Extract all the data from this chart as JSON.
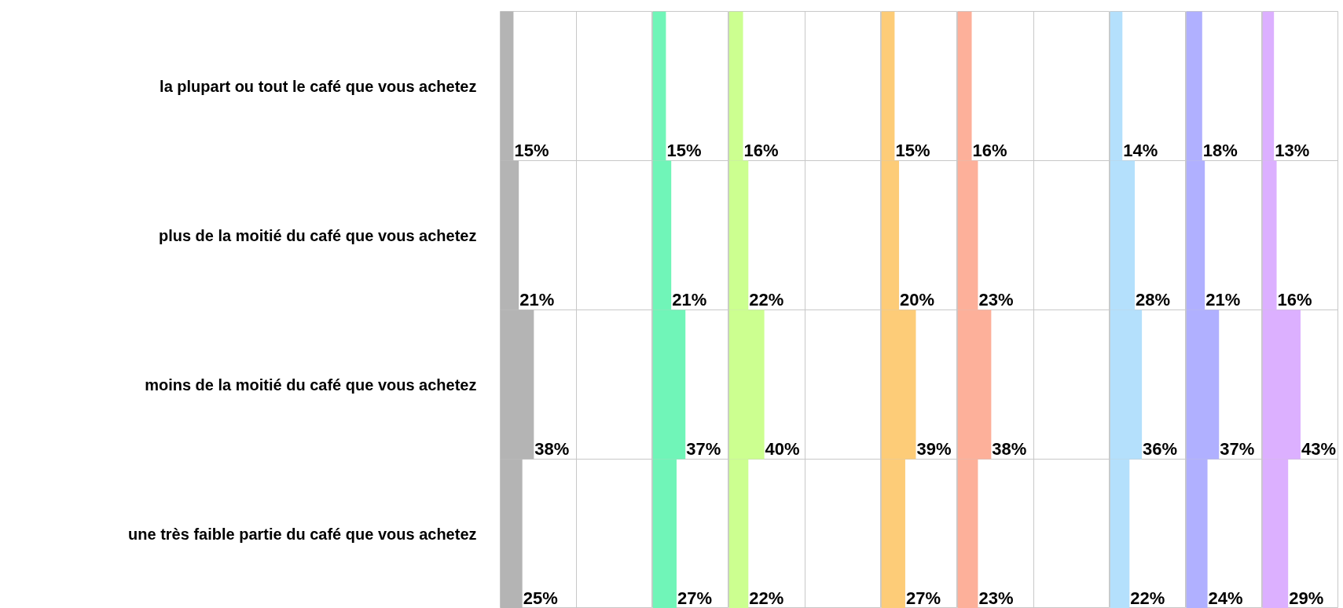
{
  "chart_data": [
    {
      "type": "bar",
      "orientation": "horizontal",
      "grid": true,
      "color": "#b4b4b4",
      "categories": [
        "la plupart ou tout le café que vous achetez",
        "plus de la moitié du café que vous achetez",
        "moins de la moitié du café que vous achetez",
        "une très faible partie du café que vous achetez"
      ],
      "values": [
        15,
        21,
        38,
        25
      ],
      "value_labels": [
        "15%",
        "21%",
        "38%",
        "25%"
      ]
    },
    {
      "type": "bar",
      "orientation": "horizontal",
      "grid": true,
      "color": "#70f5b8",
      "categories": [
        null,
        null,
        null,
        null
      ],
      "values": [
        15,
        21,
        37,
        27
      ],
      "value_labels": [
        "15%",
        "21%",
        "37%",
        "27%"
      ]
    },
    {
      "type": "bar",
      "orientation": "horizontal",
      "grid": true,
      "color": "#ccff90",
      "categories": [
        null,
        null,
        null,
        null
      ],
      "values": [
        16,
        22,
        40,
        22
      ],
      "value_labels": [
        "16%",
        "22%",
        "40%",
        "22%"
      ]
    },
    {
      "type": "bar",
      "orientation": "horizontal",
      "grid": true,
      "color": "#fdcc78",
      "categories": [
        null,
        null,
        null,
        null
      ],
      "values": [
        15,
        20,
        39,
        27
      ],
      "value_labels": [
        "15%",
        "20%",
        "39%",
        "27%"
      ]
    },
    {
      "type": "bar",
      "orientation": "horizontal",
      "grid": true,
      "color": "#fdb09a",
      "categories": [
        null,
        null,
        null,
        null
      ],
      "values": [
        16,
        23,
        38,
        23
      ],
      "value_labels": [
        "16%",
        "23%",
        "38%",
        "23%"
      ]
    },
    {
      "type": "bar",
      "orientation": "horizontal",
      "grid": true,
      "color": "#b4e0fc",
      "categories": [
        null,
        null,
        null,
        null
      ],
      "values": [
        14,
        28,
        36,
        22
      ],
      "value_labels": [
        "14%",
        "28%",
        "36%",
        "22%"
      ]
    },
    {
      "type": "bar",
      "orientation": "horizontal",
      "grid": true,
      "color": "#b0b0ff",
      "categories": [
        null,
        null,
        null,
        null
      ],
      "values": [
        18,
        21,
        37,
        24
      ],
      "value_labels": [
        "18%",
        "21%",
        "37%",
        "24%"
      ]
    },
    {
      "type": "bar",
      "orientation": "horizontal",
      "grid": true,
      "color": "#dcb0ff",
      "categories": [
        null,
        null,
        null,
        null
      ],
      "values": [
        13,
        16,
        43,
        29
      ],
      "value_labels": [
        "13%",
        "16%",
        "43%",
        "29%"
      ]
    }
  ]
}
